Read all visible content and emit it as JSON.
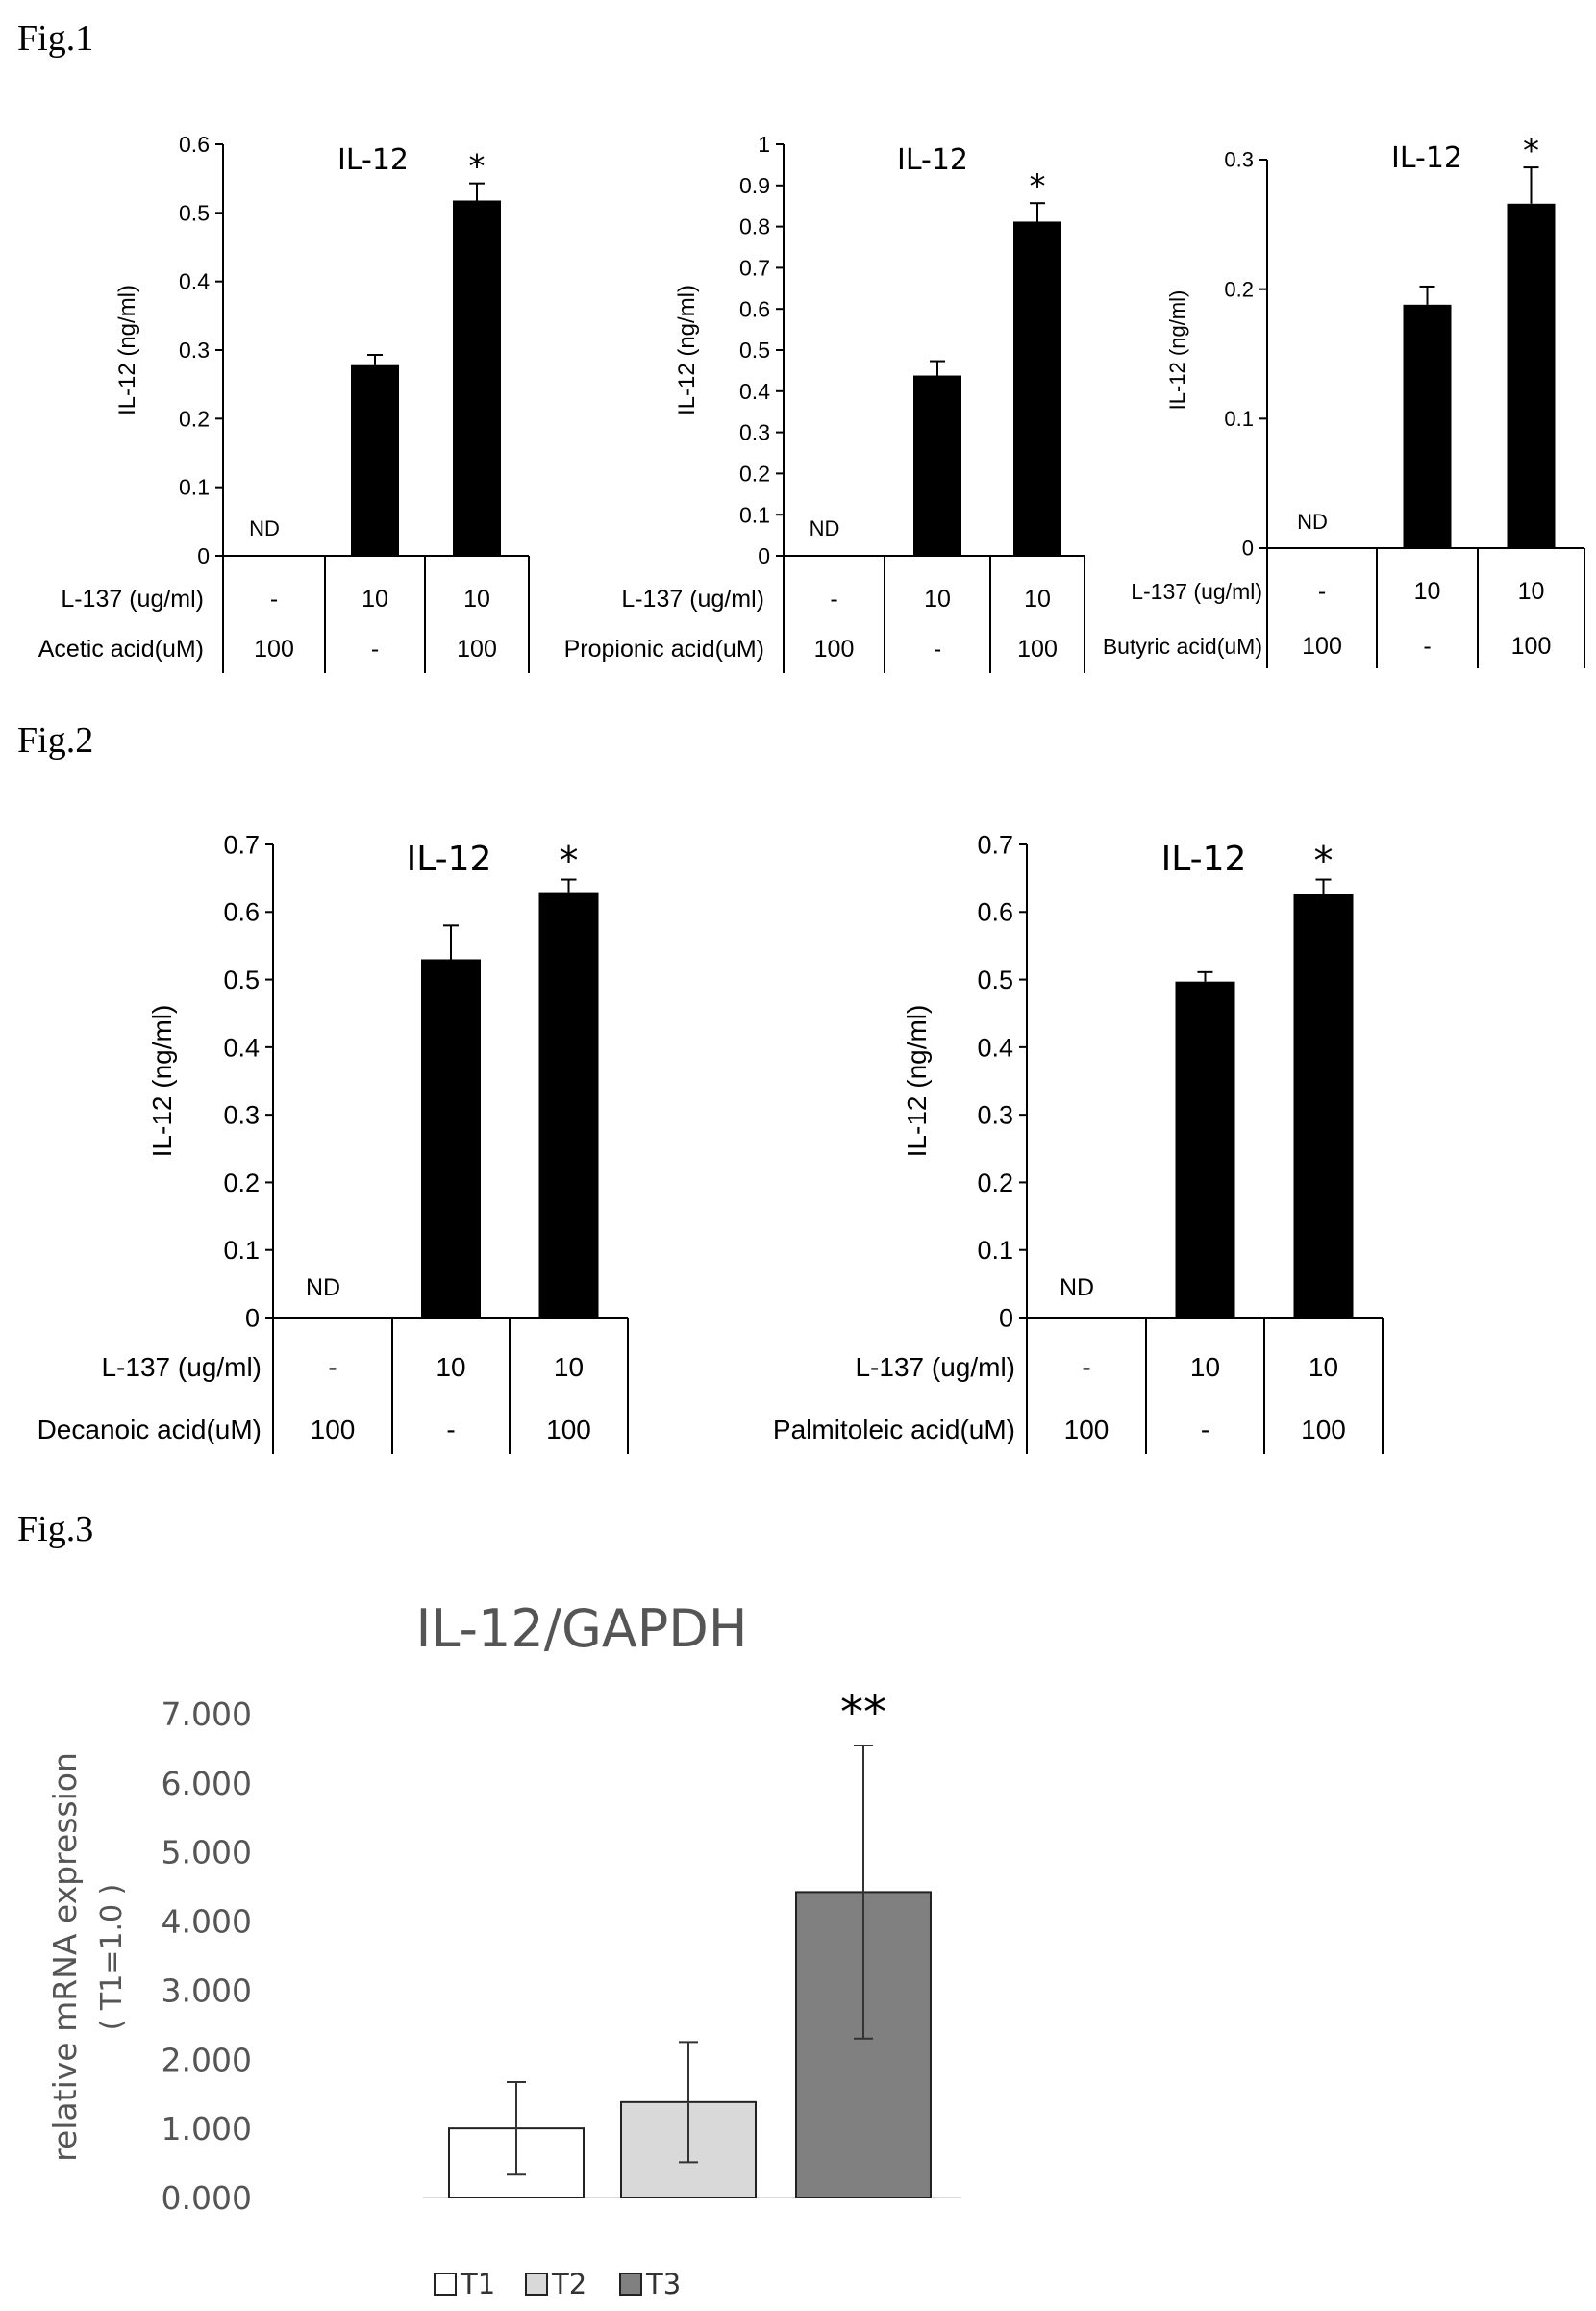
{
  "figures": [
    {
      "label": "Fig.1"
    },
    {
      "label": "Fig.2"
    },
    {
      "label": "Fig.3"
    }
  ],
  "chart_data": [
    {
      "type": "bar",
      "figure": "Fig.1",
      "title": "IL-12",
      "ylabel": "IL-12 (ng/ml)",
      "ylim": [
        0,
        0.6
      ],
      "yticks": [
        "0",
        "0.1",
        "0.2",
        "0.3",
        "0.4",
        "0.5",
        "0.6"
      ],
      "values": [
        null,
        0.278,
        0.518
      ],
      "errors": [
        0,
        0.015,
        0.025
      ],
      "annotations": [
        "ND",
        "",
        "*"
      ],
      "rows": [
        {
          "label": "L-137 (ug/ml)",
          "cells": [
            "-",
            "10",
            "10"
          ]
        },
        {
          "label": "Acetic acid(uM)",
          "cells": [
            "100",
            "-",
            "100"
          ]
        }
      ]
    },
    {
      "type": "bar",
      "figure": "Fig.1",
      "title": "IL-12",
      "ylabel": "IL-12 (ng/ml)",
      "ylim": [
        0,
        1
      ],
      "yticks": [
        "0",
        "0.1",
        "0.2",
        "0.3",
        "0.4",
        "0.5",
        "0.6",
        "0.7",
        "0.8",
        "0.9",
        "1"
      ],
      "values": [
        null,
        0.438,
        0.812
      ],
      "errors": [
        0,
        0.035,
        0.045
      ],
      "annotations": [
        "ND",
        "",
        "*"
      ],
      "rows": [
        {
          "label": "L-137 (ug/ml)",
          "cells": [
            "-",
            "10",
            "10"
          ]
        },
        {
          "label": "Propionic acid(uM)",
          "cells": [
            "100",
            "-",
            "100"
          ]
        }
      ]
    },
    {
      "type": "bar",
      "figure": "Fig.1",
      "title": "IL-12",
      "ylabel": "IL-12 (ng/ml)",
      "ylim": [
        0,
        0.3
      ],
      "yticks": [
        "0",
        "0.1",
        "0.2",
        "0.3"
      ],
      "values": [
        null,
        0.188,
        0.266
      ],
      "errors": [
        0,
        0.014,
        0.028
      ],
      "annotations": [
        "ND",
        "",
        "*"
      ],
      "rows": [
        {
          "label": "L-137 (ug/ml)",
          "cells": [
            "-",
            "10",
            "10"
          ]
        },
        {
          "label": "Butyric acid(uM)",
          "cells": [
            "100",
            "-",
            "100"
          ]
        }
      ]
    },
    {
      "type": "bar",
      "figure": "Fig.2",
      "title": "IL-12",
      "ylabel": "IL-12 (ng/ml)",
      "ylim": [
        0,
        0.7
      ],
      "yticks": [
        "0",
        "0.1",
        "0.2",
        "0.3",
        "0.4",
        "0.5",
        "0.6",
        "0.7"
      ],
      "values": [
        null,
        0.53,
        0.628
      ],
      "errors": [
        0,
        0.05,
        0.02
      ],
      "annotations": [
        "ND",
        "",
        "*"
      ],
      "rows": [
        {
          "label": "L-137 (ug/ml)",
          "cells": [
            "-",
            "10",
            "10"
          ]
        },
        {
          "label": "Decanoic acid(uM)",
          "cells": [
            "100",
            "-",
            "100"
          ]
        }
      ]
    },
    {
      "type": "bar",
      "figure": "Fig.2",
      "title": "IL-12",
      "ylabel": "IL-12 (ng/ml)",
      "ylim": [
        0,
        0.7
      ],
      "yticks": [
        "0",
        "0.1",
        "0.2",
        "0.3",
        "0.4",
        "0.5",
        "0.6",
        "0.7"
      ],
      "values": [
        null,
        0.497,
        0.626
      ],
      "errors": [
        0,
        0.014,
        0.022
      ],
      "annotations": [
        "ND",
        "",
        "*"
      ],
      "rows": [
        {
          "label": "L-137 (ug/ml)",
          "cells": [
            "-",
            "10",
            "10"
          ]
        },
        {
          "label": "Palmitoleic acid(uM)",
          "cells": [
            "100",
            "-",
            "100"
          ]
        }
      ]
    },
    {
      "type": "bar",
      "figure": "Fig.3",
      "title": "IL-12/GAPDH",
      "ylabel": "relative mRNA expression",
      "ylabel2": "( T1=1.0 )",
      "ylim": [
        0,
        7
      ],
      "yticks": [
        "0.000",
        "1.000",
        "2.000",
        "3.000",
        "4.000",
        "5.000",
        "6.000",
        "7.000"
      ],
      "categories": [
        "T1",
        "T2",
        "T3"
      ],
      "values": [
        1.0,
        1.38,
        4.42
      ],
      "errors": [
        0.67,
        0.87,
        2.12
      ],
      "colors": [
        "#ffffff",
        "#d9d9d9",
        "#808080"
      ],
      "annotations": [
        "",
        "",
        "**"
      ],
      "legend": [
        "T1",
        "T2",
        "T3"
      ]
    }
  ]
}
